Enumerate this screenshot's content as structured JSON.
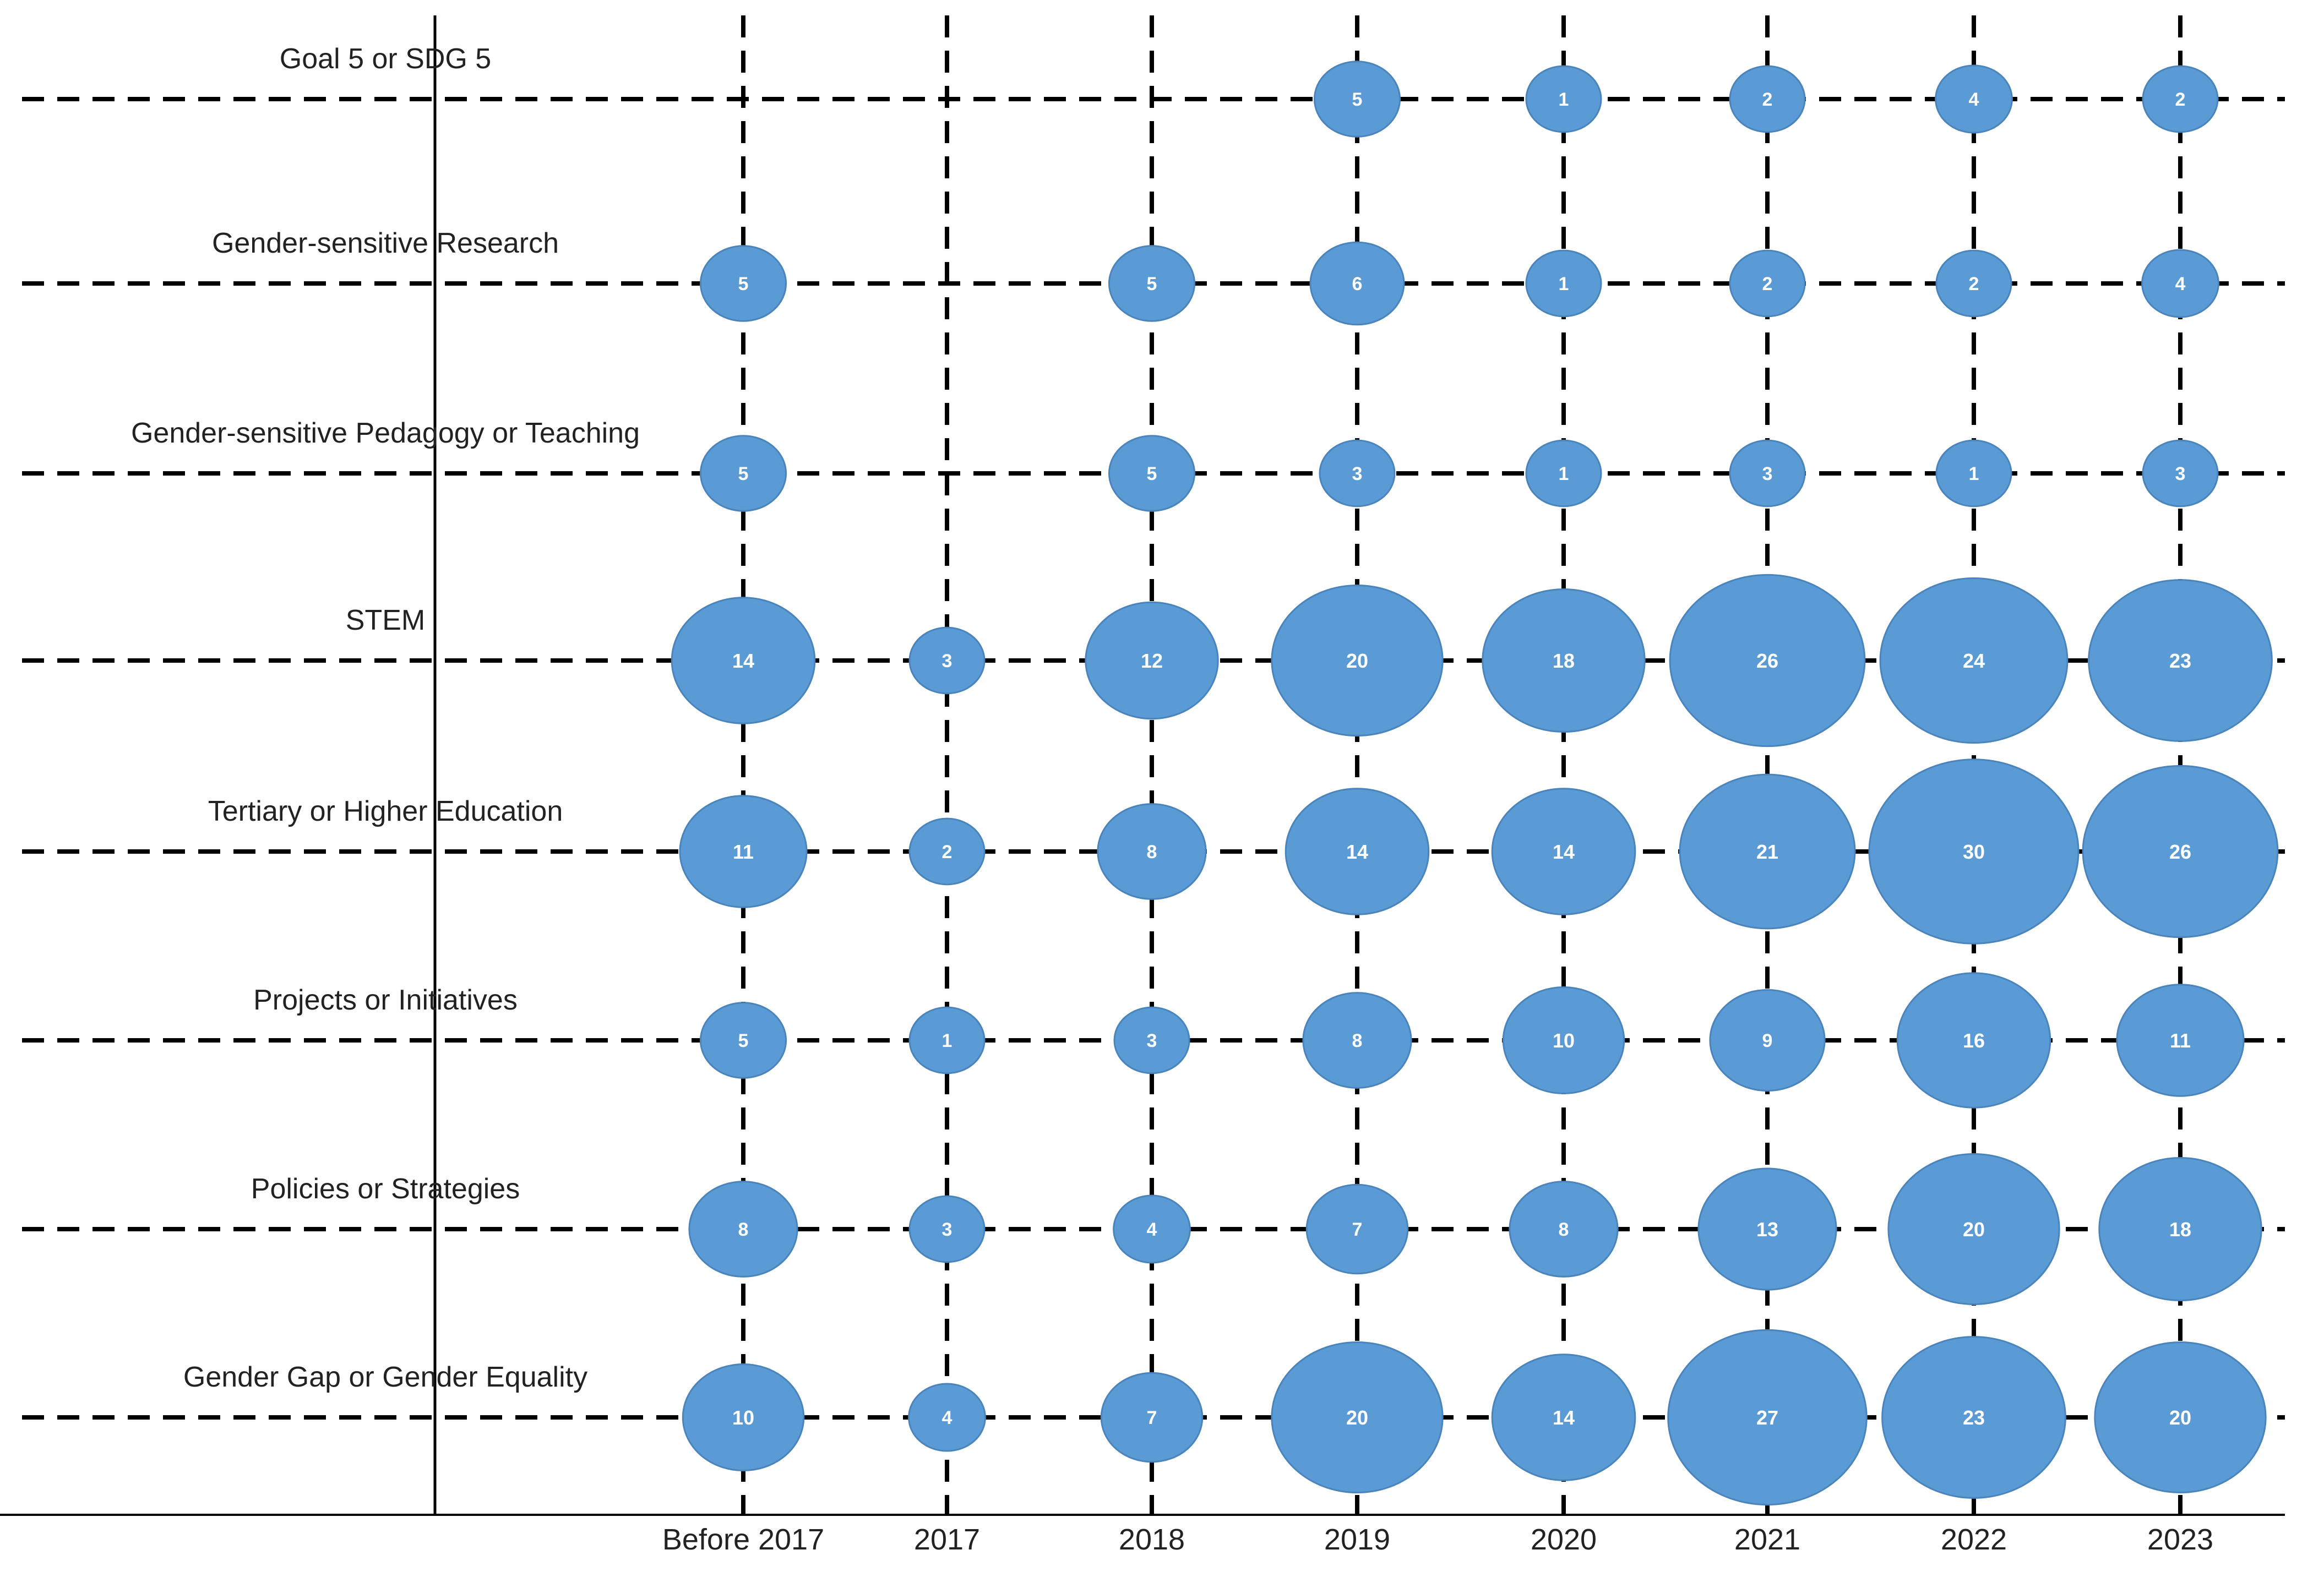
{
  "chart_data": {
    "type": "scatter",
    "subtype": "bubble-matrix",
    "title": "",
    "xlabel": "",
    "ylabel": "",
    "categories": [
      "Before 2017",
      "2017",
      "2018",
      "2019",
      "2020",
      "2021",
      "2022",
      "2023"
    ],
    "rows": [
      {
        "label": "Goal 5 or SDG 5",
        "values": [
          null,
          null,
          null,
          5,
          1,
          2,
          4,
          2
        ]
      },
      {
        "label": "Gender-sensitive Research",
        "values": [
          5,
          null,
          5,
          6,
          1,
          2,
          2,
          4
        ]
      },
      {
        "label": "Gender-sensitive Pedagogy or Teaching",
        "values": [
          5,
          null,
          5,
          3,
          1,
          3,
          1,
          3
        ]
      },
      {
        "label": "STEM",
        "values": [
          14,
          3,
          12,
          20,
          18,
          26,
          24,
          23
        ]
      },
      {
        "label": "Tertiary  or Higher Education",
        "values": [
          11,
          2,
          8,
          14,
          14,
          21,
          30,
          26
        ]
      },
      {
        "label": "Projects or Initiatives",
        "values": [
          5,
          1,
          3,
          8,
          10,
          9,
          16,
          11
        ]
      },
      {
        "label": "Policies or Strategies",
        "values": [
          8,
          3,
          4,
          7,
          8,
          13,
          20,
          18
        ]
      },
      {
        "label": "Gender Gap or Gender Equality",
        "values": [
          10,
          4,
          7,
          20,
          14,
          27,
          23,
          20
        ]
      }
    ],
    "bubble_color": "#5b9bd5",
    "bubble_label_color": "#ffffff",
    "grid": true,
    "grid_style": "dashed",
    "legend": "none"
  }
}
